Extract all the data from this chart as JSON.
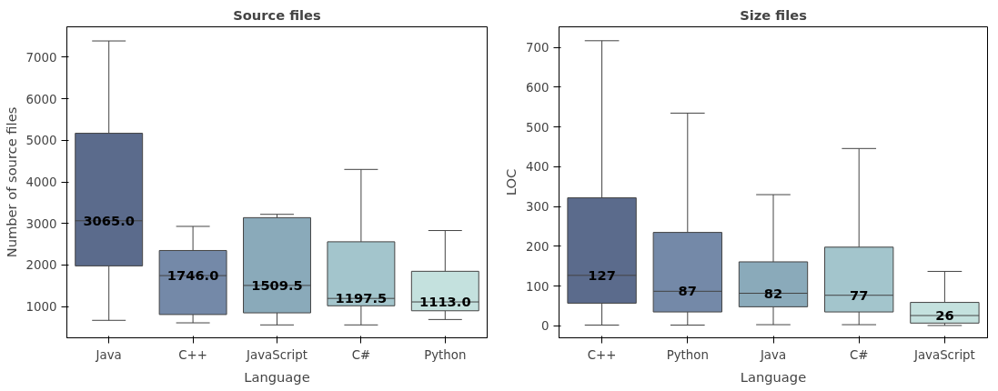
{
  "chart_data": [
    {
      "type": "box",
      "title": "Source files",
      "xlabel": "Language",
      "ylabel": "Number of source files",
      "categories": [
        "Java",
        "C++",
        "JavaScript",
        "C#",
        "Python"
      ],
      "colors": [
        "#5b6b8c",
        "#7489a8",
        "#8aaaba",
        "#a3c5cc",
        "#c4e1de"
      ],
      "boxes": [
        {
          "low": 670,
          "q1": 1980,
          "median": 3065.0,
          "q3": 5170,
          "high": 7390
        },
        {
          "low": 610,
          "q1": 810,
          "median": 1746.0,
          "q3": 2350,
          "high": 2930
        },
        {
          "low": 560,
          "q1": 850,
          "median": 1509.5,
          "q3": 3140,
          "high": 3220
        },
        {
          "low": 560,
          "q1": 1020,
          "median": 1197.5,
          "q3": 2560,
          "high": 4300
        },
        {
          "low": 690,
          "q1": 900,
          "median": 1113.0,
          "q3": 1850,
          "high": 2830
        }
      ],
      "value_labels": [
        "3065.0",
        "1746.0",
        "1509.5",
        "1197.5",
        "1113.0"
      ],
      "ylim": [
        250,
        7730
      ],
      "yticks": [
        1000,
        2000,
        3000,
        4000,
        5000,
        6000,
        7000
      ],
      "grid": false
    },
    {
      "type": "box",
      "title": "Size files",
      "xlabel": "Language",
      "ylabel": "LOC",
      "categories": [
        "C++",
        "Python",
        "Java",
        "C#",
        "JavaScript"
      ],
      "colors": [
        "#5b6b8c",
        "#7489a8",
        "#8aaaba",
        "#a3c5cc",
        "#c4e1de"
      ],
      "boxes": [
        {
          "low": 2,
          "q1": 57,
          "median": 127,
          "q3": 322,
          "high": 717
        },
        {
          "low": 2,
          "q1": 35,
          "median": 87,
          "q3": 235,
          "high": 535
        },
        {
          "low": 3,
          "q1": 48,
          "median": 82,
          "q3": 161,
          "high": 330
        },
        {
          "low": 3,
          "q1": 35,
          "median": 77,
          "q3": 198,
          "high": 446
        },
        {
          "low": 1,
          "q1": 7,
          "median": 26,
          "q3": 59,
          "high": 137
        }
      ],
      "value_labels": [
        "127",
        "87",
        "82",
        "77",
        "26"
      ],
      "ylim": [
        -30,
        752
      ],
      "yticks": [
        0,
        100,
        200,
        300,
        400,
        500,
        600,
        700
      ],
      "grid": false
    }
  ]
}
